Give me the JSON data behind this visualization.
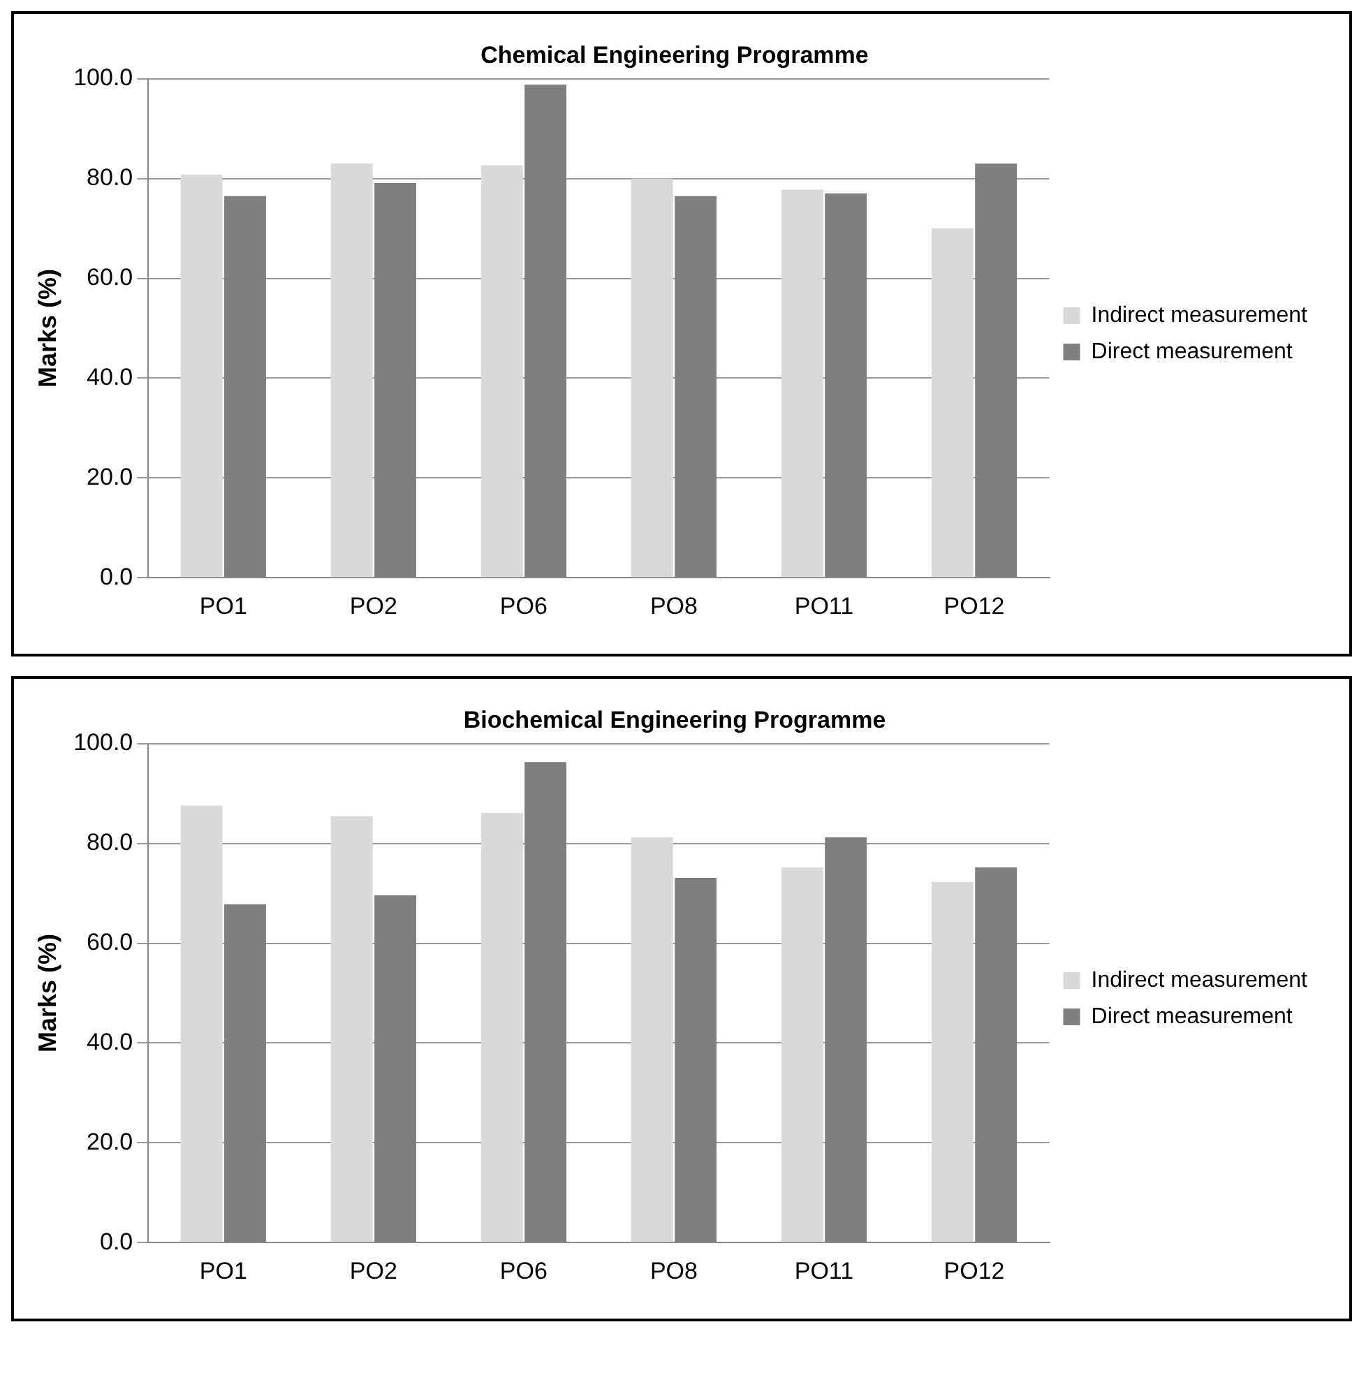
{
  "chart_data": [
    {
      "type": "bar",
      "title": "Chemical Engineering Programme",
      "ylabel": "Marks (%)",
      "categories": [
        "PO1",
        "PO2",
        "PO6",
        "PO8",
        "PO11",
        "PO12"
      ],
      "series": [
        {
          "name": "Indirect measurement",
          "color": "#d9d9d9",
          "values": [
            80.8,
            83.0,
            82.7,
            80.0,
            77.8,
            70.0
          ]
        },
        {
          "name": "Direct measurement",
          "color": "#7f7f7f",
          "values": [
            76.5,
            79.1,
            98.8,
            76.5,
            77.0,
            83.0
          ]
        }
      ],
      "ylim": [
        0,
        100
      ],
      "yticks": [
        {
          "value": 0,
          "label": "0.0"
        },
        {
          "value": 20,
          "label": "20.0"
        },
        {
          "value": 40,
          "label": "40.0"
        },
        {
          "value": 60,
          "label": "60.0"
        },
        {
          "value": 80,
          "label": "80.0"
        },
        {
          "value": 100,
          "label": "100.0"
        }
      ],
      "grid": "y",
      "legend": "right"
    },
    {
      "type": "bar",
      "title": "Biochemical Engineering Programme",
      "ylabel": "Marks (%)",
      "categories": [
        "PO1",
        "PO2",
        "PO6",
        "PO8",
        "PO11",
        "PO12"
      ],
      "series": [
        {
          "name": "Indirect measurement",
          "color": "#d9d9d9",
          "values": [
            87.6,
            85.5,
            86.1,
            81.2,
            75.2,
            72.3
          ]
        },
        {
          "name": "Direct measurement",
          "color": "#7f7f7f",
          "values": [
            67.8,
            69.6,
            96.3,
            73.1,
            81.2,
            75.2
          ]
        }
      ],
      "ylim": [
        0,
        100
      ],
      "yticks": [
        {
          "value": 0,
          "label": "0.0"
        },
        {
          "value": 20,
          "label": "20.0"
        },
        {
          "value": 40,
          "label": "40.0"
        },
        {
          "value": 60,
          "label": "60.0"
        },
        {
          "value": 80,
          "label": "80.0"
        },
        {
          "value": 100,
          "label": "100.0"
        }
      ],
      "grid": "y",
      "legend": "right"
    }
  ]
}
